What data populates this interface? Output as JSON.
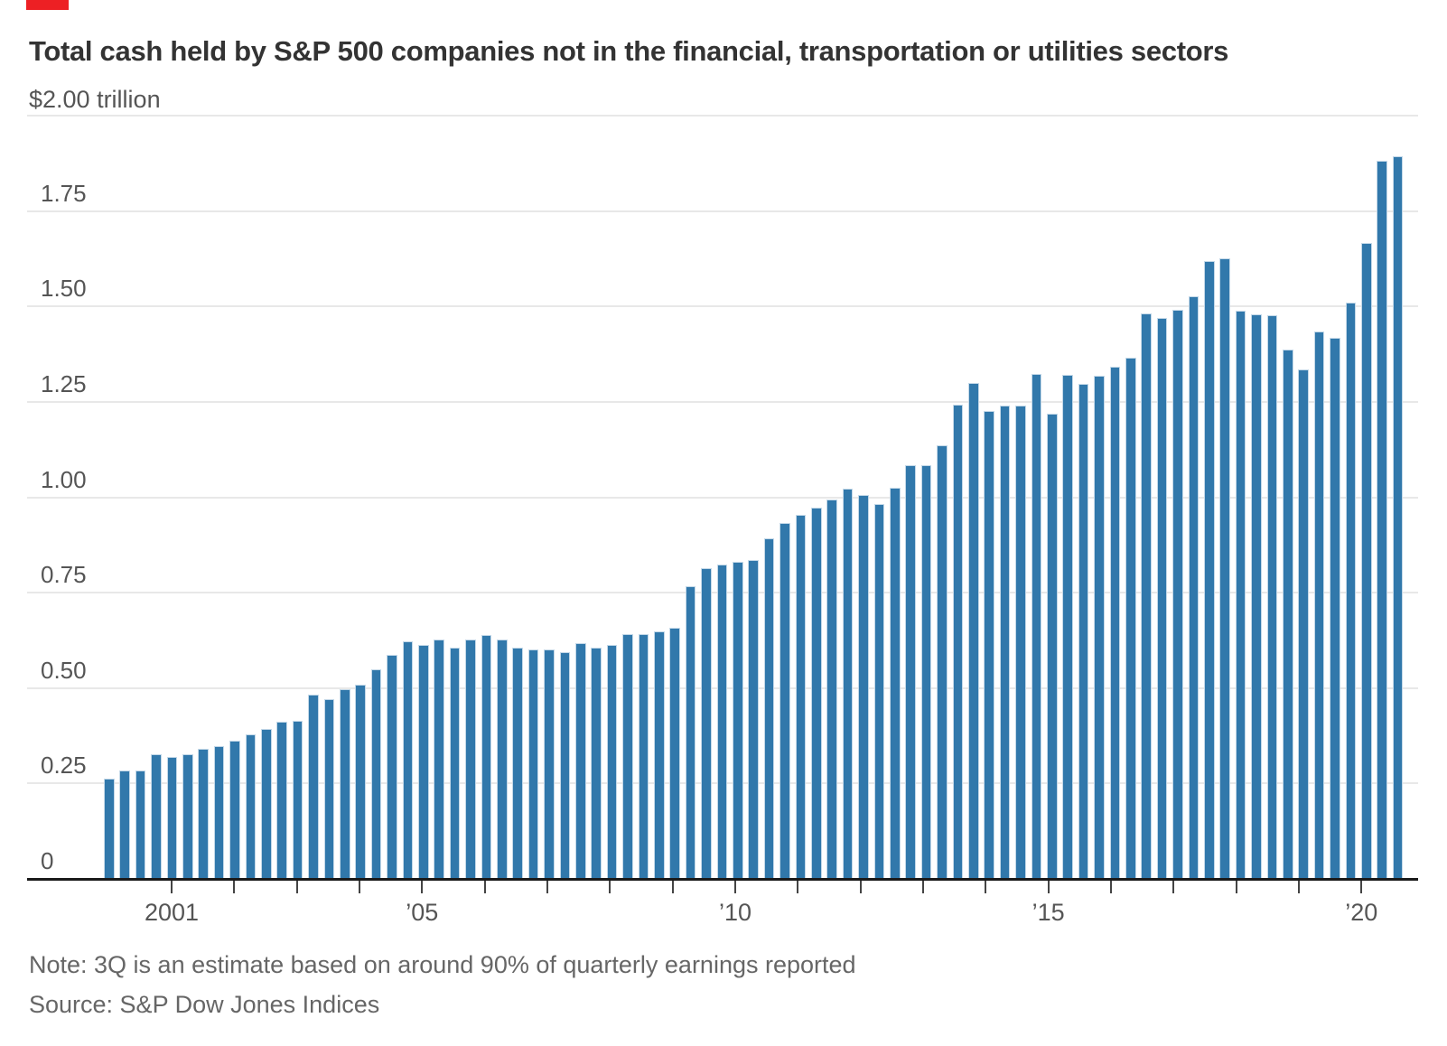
{
  "page": {
    "marker_color": "#ed2024"
  },
  "header": {
    "title": "Total cash held by S&P 500 companies not in the financial, transportation or utilities sectors",
    "unit_label": "$2.00 trillion"
  },
  "footer": {
    "note": "Note: 3Q is an estimate based on around 90% of quarterly earnings reported",
    "source": "Source: S&P Dow Jones Indices"
  },
  "chart_data": {
    "type": "bar",
    "title": "Total cash held by S&P 500 companies not in the financial, transportation or utilities sectors",
    "unit": "trillions of U.S. dollars",
    "ylim": [
      0,
      2.0
    ],
    "grid": "horizontal",
    "legend": "none",
    "y_top_label": "$2.00 trillion",
    "y_ticks": [
      "0",
      "0.25",
      "0.50",
      "0.75",
      "1.00",
      "1.25",
      "1.50",
      "1.75"
    ],
    "y_tick_values": [
      0,
      0.25,
      0.5,
      0.75,
      1.0,
      1.25,
      1.5,
      1.75
    ],
    "x_tick_labels": [
      {
        "year": 2001,
        "label": "2001"
      },
      {
        "year": 2005,
        "label": "’05"
      },
      {
        "year": 2010,
        "label": "’10"
      },
      {
        "year": 2015,
        "label": "’15"
      },
      {
        "year": 2020,
        "label": "’20"
      }
    ],
    "x_minor_tick_years": [
      2001,
      2002,
      2003,
      2004,
      2005,
      2006,
      2007,
      2008,
      2009,
      2010,
      2011,
      2012,
      2013,
      2014,
      2015,
      2016,
      2017,
      2018,
      2019,
      2020
    ],
    "x": [
      "2000 Q1",
      "2000 Q2",
      "2000 Q3",
      "2000 Q4",
      "2001 Q1",
      "2001 Q2",
      "2001 Q3",
      "2001 Q4",
      "2002 Q1",
      "2002 Q2",
      "2002 Q3",
      "2002 Q4",
      "2003 Q1",
      "2003 Q2",
      "2003 Q3",
      "2003 Q4",
      "2004 Q1",
      "2004 Q2",
      "2004 Q3",
      "2004 Q4",
      "2005 Q1",
      "2005 Q2",
      "2005 Q3",
      "2005 Q4",
      "2006 Q1",
      "2006 Q2",
      "2006 Q3",
      "2006 Q4",
      "2007 Q1",
      "2007 Q2",
      "2007 Q3",
      "2007 Q4",
      "2008 Q1",
      "2008 Q2",
      "2008 Q3",
      "2008 Q4",
      "2009 Q1",
      "2009 Q2",
      "2009 Q3",
      "2009 Q4",
      "2010 Q1",
      "2010 Q2",
      "2010 Q3",
      "2010 Q4",
      "2011 Q1",
      "2011 Q2",
      "2011 Q3",
      "2011 Q4",
      "2012 Q1",
      "2012 Q2",
      "2012 Q3",
      "2012 Q4",
      "2013 Q1",
      "2013 Q2",
      "2013 Q3",
      "2013 Q4",
      "2014 Q1",
      "2014 Q2",
      "2014 Q3",
      "2014 Q4",
      "2015 Q1",
      "2015 Q2",
      "2015 Q3",
      "2015 Q4",
      "2016 Q1",
      "2016 Q2",
      "2016 Q3",
      "2016 Q4",
      "2017 Q1",
      "2017 Q2",
      "2017 Q3",
      "2017 Q4",
      "2018 Q1",
      "2018 Q2",
      "2018 Q3",
      "2018 Q4",
      "2019 Q1",
      "2019 Q2",
      "2019 Q3",
      "2019 Q4",
      "2020 Q1",
      "2020 Q2",
      "2020 Q3"
    ],
    "values": [
      0.263,
      0.285,
      0.284,
      0.327,
      0.32,
      0.326,
      0.342,
      0.348,
      0.362,
      0.378,
      0.394,
      0.411,
      0.415,
      0.483,
      0.47,
      0.496,
      0.509,
      0.549,
      0.586,
      0.623,
      0.612,
      0.628,
      0.607,
      0.628,
      0.64,
      0.627,
      0.606,
      0.601,
      0.601,
      0.595,
      0.617,
      0.607,
      0.612,
      0.642,
      0.642,
      0.648,
      0.657,
      0.768,
      0.814,
      0.824,
      0.83,
      0.836,
      0.893,
      0.933,
      0.955,
      0.972,
      0.995,
      1.022,
      1.007,
      0.982,
      1.024,
      1.085,
      1.085,
      1.137,
      1.242,
      1.299,
      1.226,
      1.24,
      1.241,
      1.324,
      1.219,
      1.32,
      1.298,
      1.318,
      1.341,
      1.366,
      1.481,
      1.47,
      1.49,
      1.526,
      1.619,
      1.627,
      1.489,
      1.48,
      1.476,
      1.387,
      1.334,
      1.434,
      1.417,
      1.511,
      1.667,
      1.881,
      1.893
    ],
    "bar_color": "#3178ab",
    "bar_edge_color": "#c3d8e8",
    "gridline_color": "#e8e8e8",
    "axis_color": "#1a1a1a",
    "label_color": "#555555"
  }
}
